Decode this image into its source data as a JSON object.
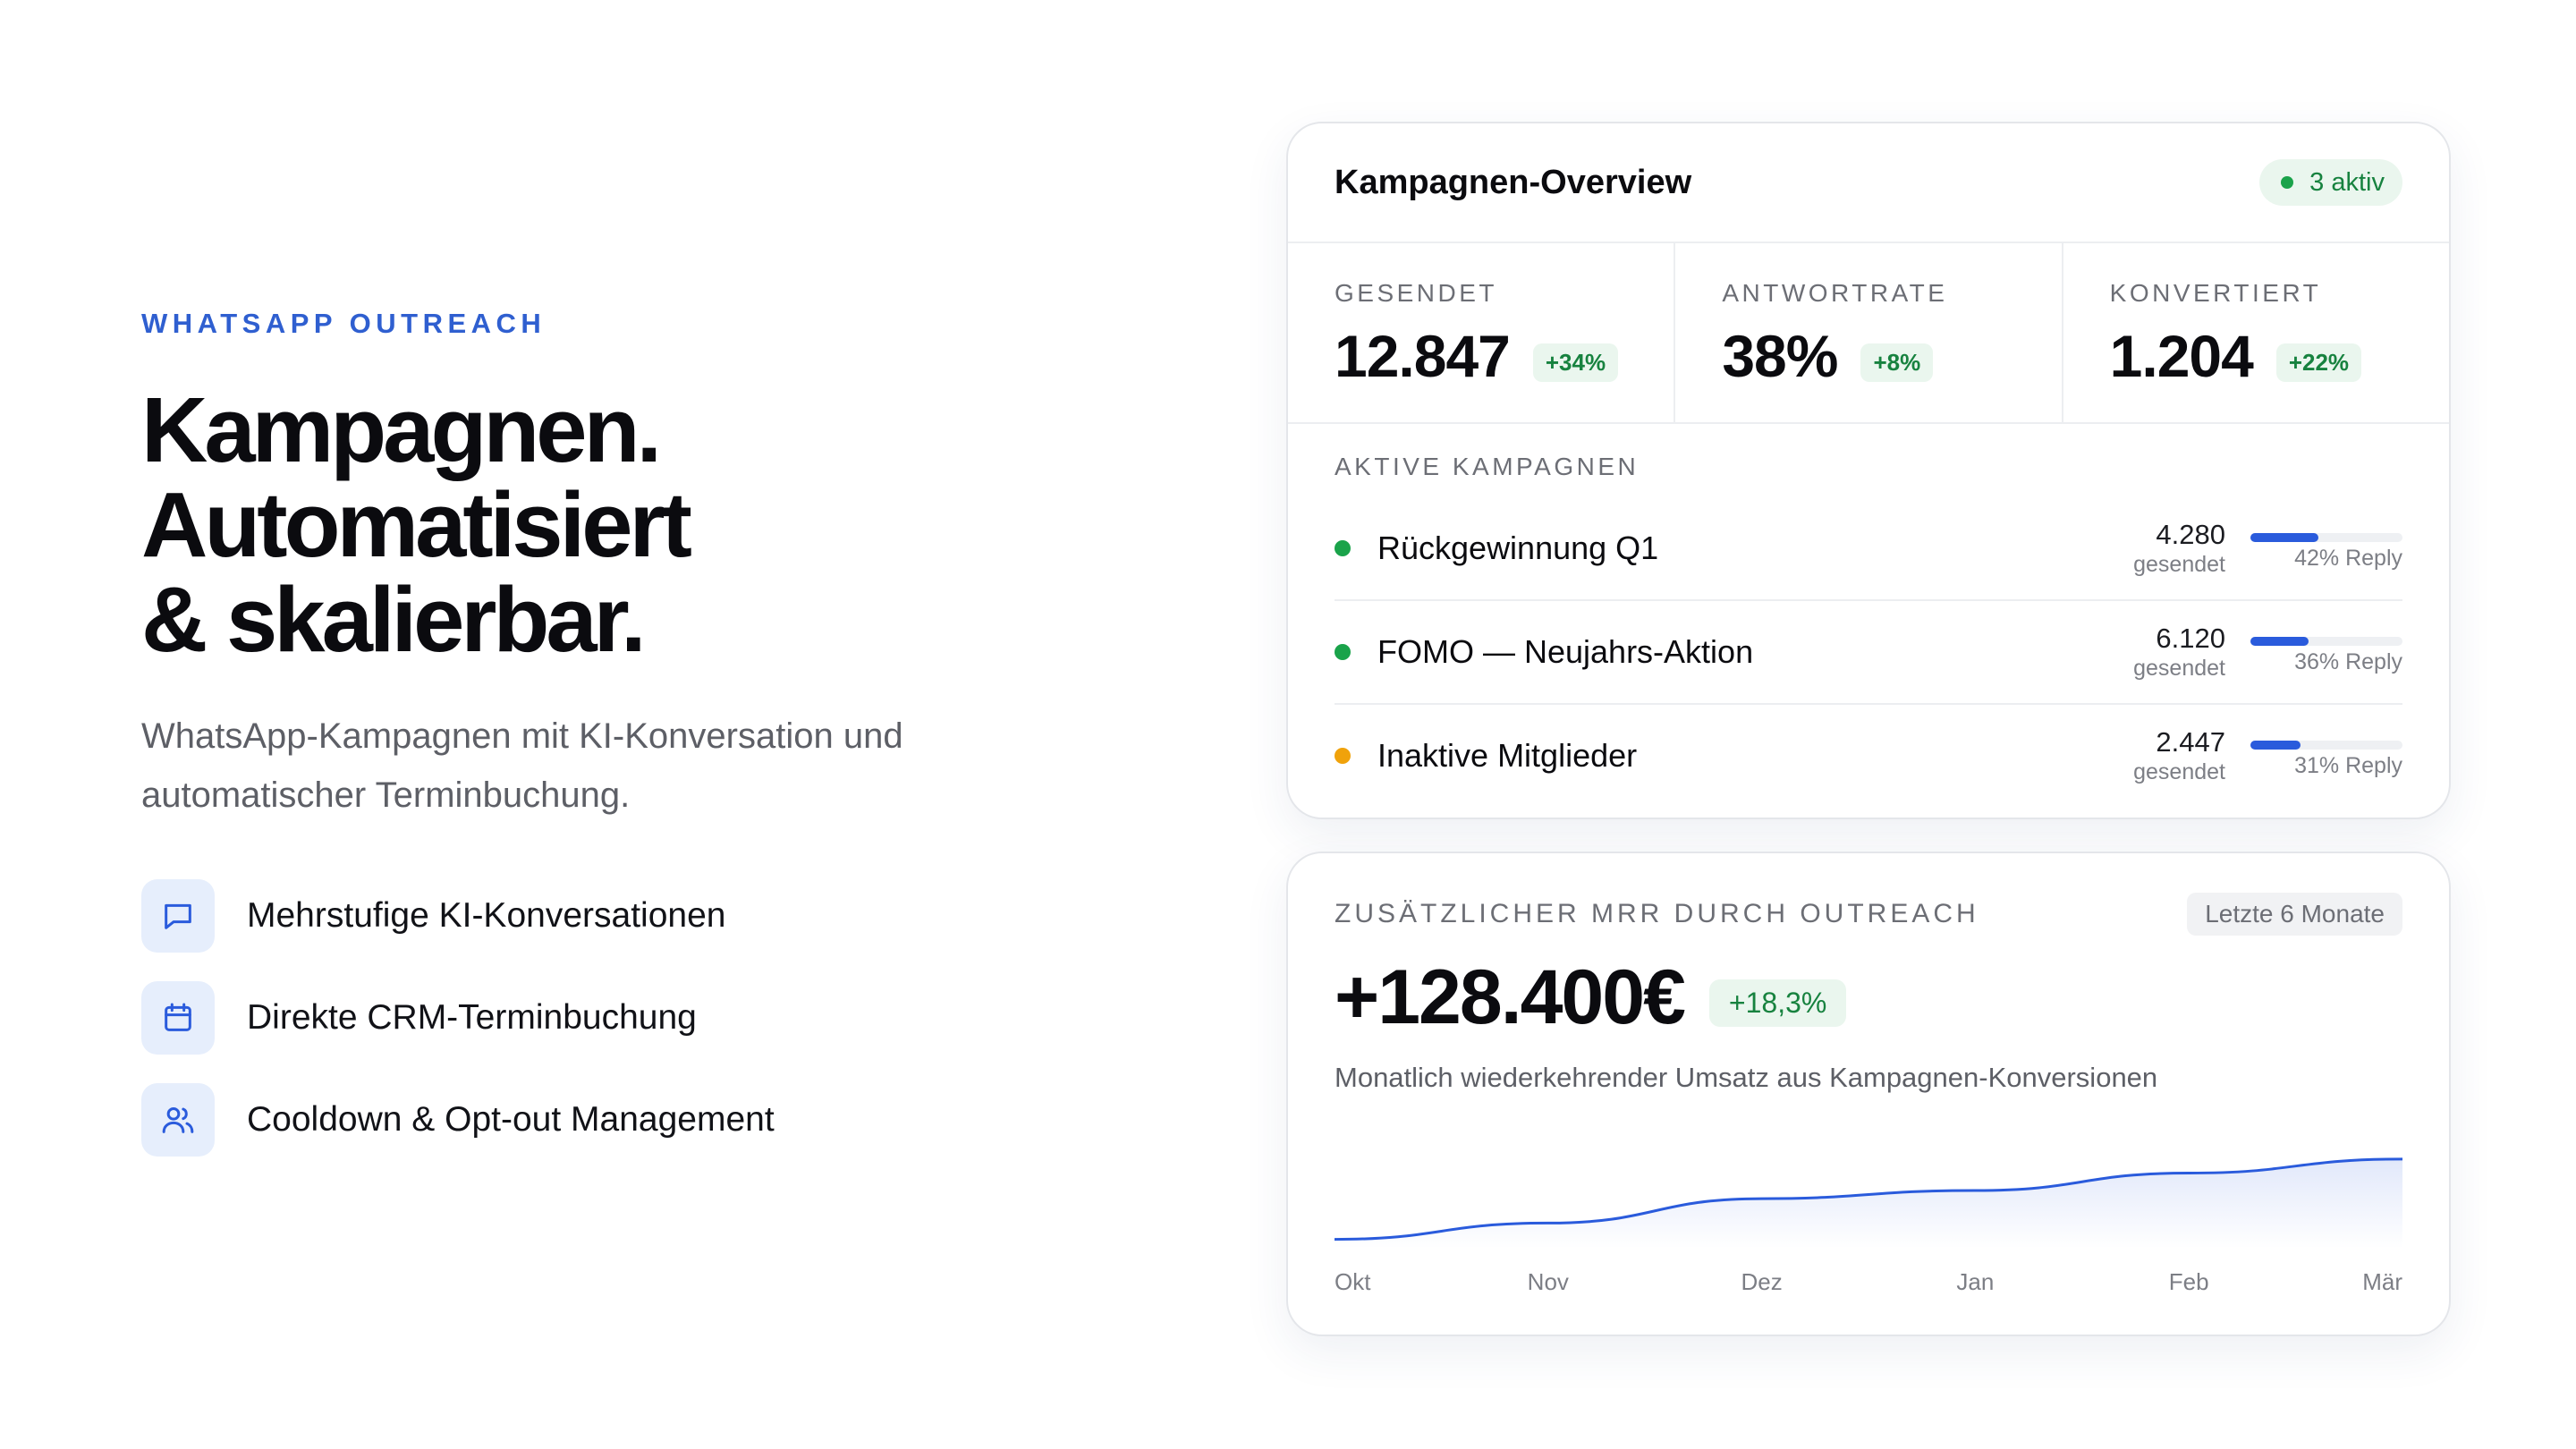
{
  "hero": {
    "eyebrow": "WHATSAPP OUTREACH",
    "headline_line1": "Kampagnen.",
    "headline_line2": "Automatisiert",
    "headline_line3": "& skalierbar.",
    "subtitle": "WhatsApp-Kampagnen mit KI-Konversation und automatischer Terminbuchung.",
    "features": [
      {
        "icon": "chat-bubble-icon",
        "label": "Mehrstufige KI-Konversationen"
      },
      {
        "icon": "calendar-icon",
        "label": "Direkte CRM-Terminbuchung"
      },
      {
        "icon": "users-icon",
        "label": "Cooldown & Opt-out Management"
      }
    ]
  },
  "overview": {
    "title": "Kampagnen-Overview",
    "active_badge": "3 aktiv",
    "stats": [
      {
        "label": "GESENDET",
        "value": "12.847",
        "delta": "+34%"
      },
      {
        "label": "ANTWORTRATE",
        "value": "38%",
        "delta": "+8%"
      },
      {
        "label": "KONVERTIERT",
        "value": "1.204",
        "delta": "+22%"
      }
    ],
    "section_label": "AKTIVE KAMPAGNEN",
    "campaigns": [
      {
        "name": "Rückgewinnung Q1",
        "count": "4.280",
        "sent_label": "gesendet",
        "reply": "42% Reply",
        "reply_rate": 0.42,
        "status_color": "#1aa34a"
      },
      {
        "name": "FOMO — Neujahrs-Aktion",
        "count": "6.120",
        "sent_label": "gesendet",
        "reply": "36% Reply",
        "reply_rate": 0.36,
        "status_color": "#1aa34a"
      },
      {
        "name": "Inaktive Mitglieder",
        "count": "2.447",
        "sent_label": "gesendet",
        "reply": "31% Reply",
        "reply_rate": 0.31,
        "status_color": "#f0a20b"
      }
    ]
  },
  "mrr": {
    "label": "ZUSÄTZLICHER MRR DURCH OUTREACH",
    "period_pill": "Letzte 6 Monate",
    "value": "+128.400€",
    "delta": "+18,3%",
    "description": "Monatlich wiederkehrender Umsatz aus Kampagnen-Konversionen"
  },
  "colors": {
    "accent": "#2a5bdc",
    "positive": "#17823f",
    "warning": "#f0a20b"
  },
  "chart_data": {
    "type": "area",
    "categories": [
      "Okt",
      "Nov",
      "Dez",
      "Jan",
      "Feb",
      "Mär"
    ],
    "values": [
      0.08,
      0.22,
      0.43,
      0.5,
      0.65,
      0.77
    ],
    "title": "",
    "xlabel": "",
    "ylabel": "",
    "ylim": [
      0,
      1
    ],
    "grid": false,
    "line_color": "#2a5bdc"
  }
}
